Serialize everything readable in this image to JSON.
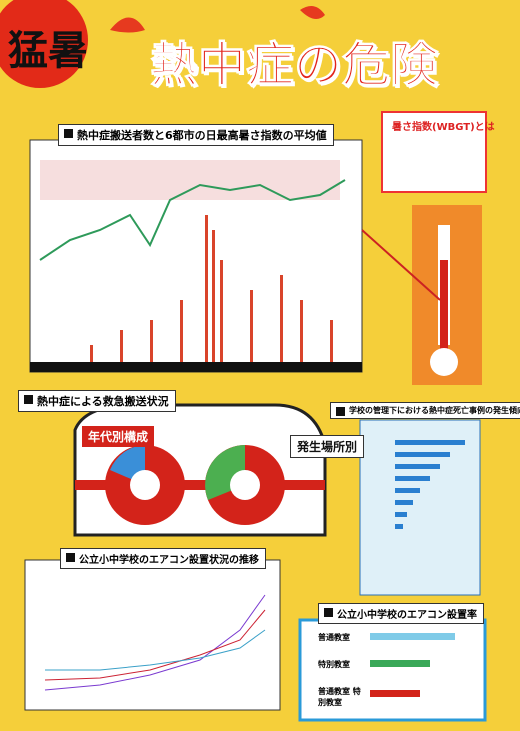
{
  "header": {
    "tag": "猛暑",
    "title": "熱中症の危険"
  },
  "sections": {
    "main_chart": "熱中症搬送者数と6都市の日最高暑さ指数の平均値",
    "wbgt": "暑さ指数(WBGT)とは",
    "transport": "熱中症による救急搬送状況",
    "age": "年代別構成",
    "place": "発生場所別",
    "school": "学校の管理下における熱中症死亡事例の発生傾向",
    "aircon_trend": "公立小中学校のエアコン設置状況の推移",
    "aircon_rate": "公立小中学校のエアコン設置率",
    "rate_rows": [
      "普通教室",
      "特別教室",
      "普通教室 特別教室"
    ]
  }
}
